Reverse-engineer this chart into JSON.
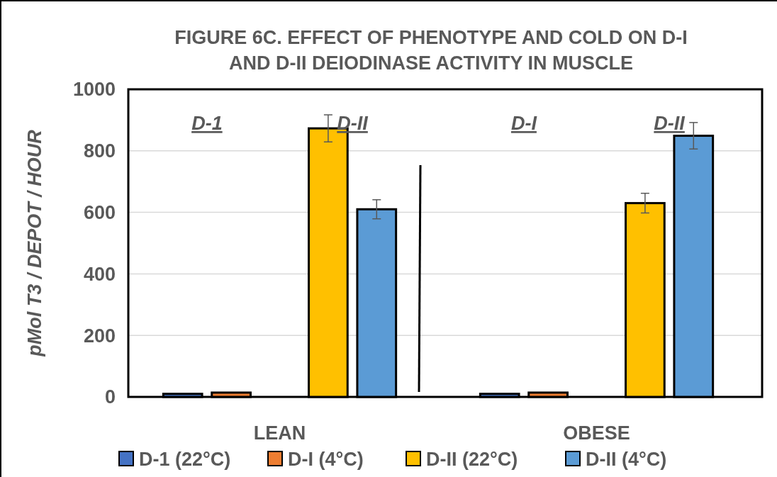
{
  "chart_data": {
    "type": "bar",
    "title": "FIGURE 6C. EFFECT OF PHENOTYPE AND COLD ON D-I AND D-II DEIODINASE ACTIVITY IN MUSCLE",
    "ylabel": "pMol T3 / DEPOT / HOUR",
    "categories": [
      "LEAN",
      "OBESE"
    ],
    "series": [
      {
        "name": "D-1 (22°C)",
        "color": "#4472c4",
        "values": [
          10,
          10
        ]
      },
      {
        "name": "D-I (4°C)",
        "color": "#ed7d31",
        "values": [
          14,
          14
        ]
      },
      {
        "name": "D-II (22°C)",
        "color": "#ffc000",
        "values": [
          873,
          630
        ],
        "errors": [
          44,
          32
        ]
      },
      {
        "name": "D-II (4°C)",
        "color": "#5b9bd5",
        "values": [
          610,
          849
        ],
        "errors": [
          31,
          43
        ]
      }
    ],
    "annotations": [
      "D-1",
      "D-II",
      "D-I",
      "D-II"
    ],
    "ylim": [
      0,
      1000
    ],
    "yticks": [
      0,
      200,
      400,
      600,
      800,
      1000
    ],
    "grid": "y",
    "legend": "bottom"
  }
}
